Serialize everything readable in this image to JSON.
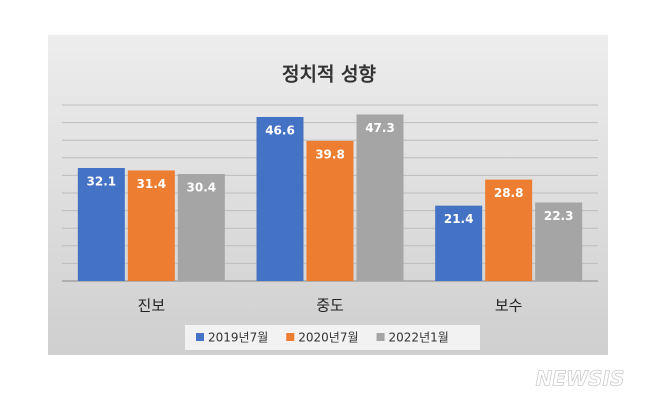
{
  "chart_data": {
    "type": "bar",
    "title": "정치적 성향",
    "categories": [
      "진보",
      "중도",
      "보수"
    ],
    "series": [
      {
        "name": "2019년7월",
        "color": "#4472c4",
        "values": [
          32.1,
          46.6,
          21.4
        ]
      },
      {
        "name": "2020년7월",
        "color": "#ed7d31",
        "values": [
          31.4,
          39.8,
          28.8
        ]
      },
      {
        "name": "2022년1월",
        "color": "#a5a5a5",
        "values": [
          30.4,
          47.3,
          22.3
        ]
      }
    ],
    "ylim": [
      0,
      50
    ],
    "yticks": [
      0,
      5,
      10,
      15,
      20,
      25,
      30,
      35,
      40,
      45,
      50
    ],
    "grid": true,
    "legend": "bottom"
  },
  "watermark": "NEWSIS"
}
